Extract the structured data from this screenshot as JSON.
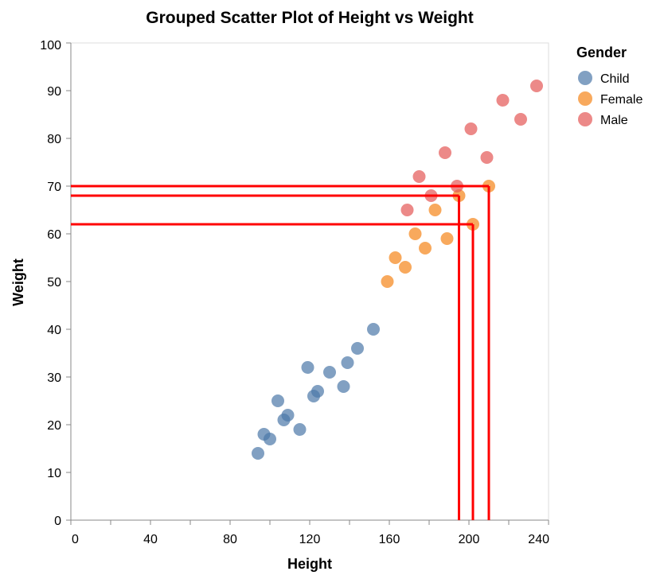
{
  "chart_data": {
    "type": "scatter",
    "title": "Grouped Scatter Plot of Height vs Weight",
    "xlabel": "Height",
    "ylabel": "Weight",
    "xlim": [
      0,
      240
    ],
    "ylim": [
      0,
      100
    ],
    "x_ticks": [
      0,
      40,
      80,
      120,
      160,
      200,
      240
    ],
    "y_ticks": [
      0,
      10,
      20,
      30,
      40,
      50,
      60,
      70,
      80,
      90,
      100
    ],
    "grid": false,
    "legend": {
      "title": "Gender",
      "placement": "top-right"
    },
    "series": [
      {
        "name": "Child",
        "color": "#4c78a8",
        "points": [
          {
            "x": 94,
            "y": 14
          },
          {
            "x": 97,
            "y": 18
          },
          {
            "x": 100,
            "y": 17
          },
          {
            "x": 104,
            "y": 25
          },
          {
            "x": 107,
            "y": 21
          },
          {
            "x": 109,
            "y": 22
          },
          {
            "x": 115,
            "y": 19
          },
          {
            "x": 119,
            "y": 32
          },
          {
            "x": 122,
            "y": 26
          },
          {
            "x": 124,
            "y": 27
          },
          {
            "x": 130,
            "y": 31
          },
          {
            "x": 137,
            "y": 28
          },
          {
            "x": 139,
            "y": 33
          },
          {
            "x": 144,
            "y": 36
          },
          {
            "x": 152,
            "y": 40
          }
        ]
      },
      {
        "name": "Female",
        "color": "#f58518",
        "points": [
          {
            "x": 159,
            "y": 50
          },
          {
            "x": 163,
            "y": 55
          },
          {
            "x": 168,
            "y": 53
          },
          {
            "x": 173,
            "y": 60
          },
          {
            "x": 178,
            "y": 57
          },
          {
            "x": 183,
            "y": 65
          },
          {
            "x": 189,
            "y": 59
          },
          {
            "x": 195,
            "y": 68
          },
          {
            "x": 202,
            "y": 62
          },
          {
            "x": 210,
            "y": 70
          }
        ]
      },
      {
        "name": "Male",
        "color": "#e45756",
        "points": [
          {
            "x": 169,
            "y": 65
          },
          {
            "x": 175,
            "y": 72
          },
          {
            "x": 181,
            "y": 68
          },
          {
            "x": 188,
            "y": 77
          },
          {
            "x": 194,
            "y": 70
          },
          {
            "x": 201,
            "y": 82
          },
          {
            "x": 209,
            "y": 76
          },
          {
            "x": 217,
            "y": 88
          },
          {
            "x": 226,
            "y": 84
          },
          {
            "x": 234,
            "y": 91
          }
        ]
      }
    ],
    "reference_lines": {
      "color": "#ff0000",
      "points": [
        {
          "x": 195,
          "y": 68
        },
        {
          "x": 202,
          "y": 62
        },
        {
          "x": 210,
          "y": 70
        }
      ]
    }
  }
}
